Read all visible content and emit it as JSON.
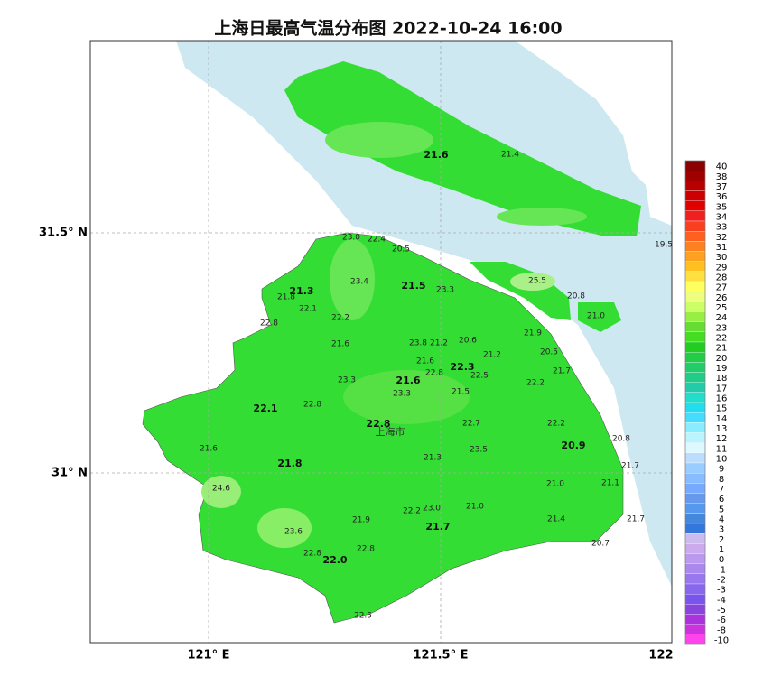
{
  "title": "上海日最高气温分布图 2022-10-24 16:00",
  "axis_labels": {
    "lat": [
      "31.5° N",
      "31° N"
    ],
    "lon": [
      "121° E",
      "121.5° E",
      "122"
    ]
  },
  "city_label": "上海市",
  "district_values": [
    "21.6",
    "21.3",
    "21.5",
    "22.3",
    "21.6",
    "22.1",
    "22.8",
    "20.9",
    "21.8",
    "21.7",
    "22.0"
  ],
  "station_values": [
    "21.4",
    "19.5",
    "25.5",
    "20.8",
    "21.0",
    "23.0",
    "22.4",
    "20.5",
    "21.8",
    "22.1",
    "23.4",
    "23.3",
    "22.8",
    "22.2",
    "21.6",
    "21.9",
    "23.8",
    "21.2",
    "20.6",
    "21.2",
    "20.5",
    "21.6",
    "22.8",
    "22.5",
    "21.7",
    "23.3",
    "22.2",
    "23.3",
    "21.5",
    "22.8",
    "22.7",
    "22.2",
    "20.8",
    "21.6",
    "23.5",
    "21.3",
    "21.7",
    "21.0",
    "21.1",
    "24.6",
    "22.2",
    "23.0",
    "21.0",
    "21.9",
    "21.4",
    "21.7",
    "23.6",
    "20.7",
    "22.8",
    "22.8",
    "22.5"
  ],
  "colorbar": {
    "labels": [
      "40",
      "38",
      "37",
      "36",
      "35",
      "34",
      "33",
      "32",
      "31",
      "30",
      "29",
      "28",
      "27",
      "26",
      "25",
      "24",
      "23",
      "22",
      "21",
      "20",
      "19",
      "18",
      "17",
      "16",
      "15",
      "14",
      "13",
      "12",
      "11",
      "10",
      "9",
      "8",
      "7",
      "6",
      "5",
      "4",
      "3",
      "2",
      "1",
      "0",
      "-1",
      "-2",
      "-3",
      "-4",
      "-5",
      "-6",
      "-8",
      "-10"
    ],
    "colors": [
      "#8b0000",
      "#a00000",
      "#b80000",
      "#cc0000",
      "#e00000",
      "#f02020",
      "#f84020",
      "#ff6020",
      "#ff8020",
      "#ffa020",
      "#ffc020",
      "#ffe040",
      "#ffff60",
      "#eeff80",
      "#ccff66",
      "#99ee44",
      "#66dd33",
      "#44dd22",
      "#22cc22",
      "#22cc44",
      "#22cc66",
      "#22cc88",
      "#22ccaa",
      "#22ddcc",
      "#22ddee",
      "#44ddff",
      "#88eeff",
      "#bbf4ff",
      "#ddf8ff",
      "#bbddff",
      "#99ccff",
      "#88bbff",
      "#77aaff",
      "#6699ee",
      "#5599ee",
      "#4488dd",
      "#3377dd",
      "#ccbbee",
      "#ccaaee",
      "#bb99ee",
      "#aa88ee",
      "#9977ee",
      "#8866ee",
      "#7755ee",
      "#8844dd",
      "#aa33dd",
      "#cc33dd",
      "#ff44ee"
    ]
  }
}
